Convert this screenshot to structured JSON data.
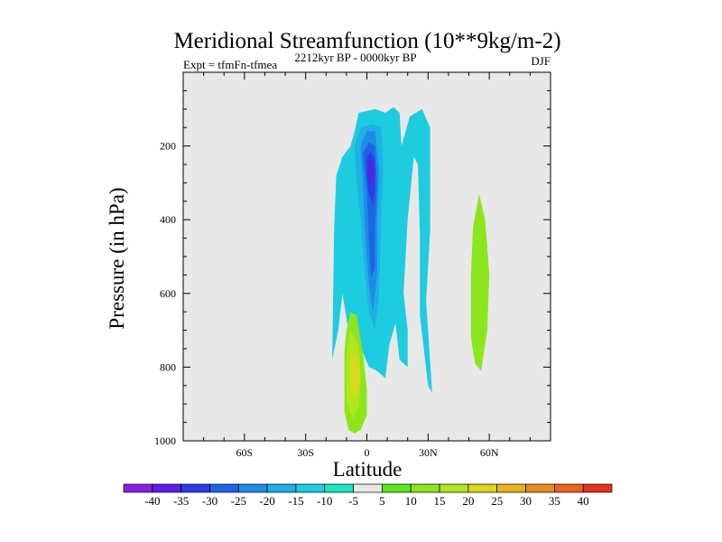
{
  "chart_data": {
    "type": "contour",
    "title": "Meridional Streamfunction (10**9kg/m-2)",
    "subtitle_left": "Expt = tfmFn-tfmea",
    "subtitle_center": "2212kyr BP - 0000kyr BP",
    "subtitle_right": "DJF",
    "xlabel": "Latitude",
    "ylabel": "Pressure (in hPa)",
    "xlim": [
      -90,
      90
    ],
    "ylim": [
      1000,
      0
    ],
    "x_ticks": [
      -60,
      -30,
      0,
      30,
      60
    ],
    "x_tick_labels": [
      "60S",
      "30S",
      "0",
      "30N",
      "60N"
    ],
    "y_ticks": [
      200,
      400,
      600,
      800,
      1000
    ],
    "y_tick_labels": [
      "200",
      "400",
      "600",
      "800",
      "1000"
    ],
    "colorbar": {
      "labels": [
        "-40",
        "-35",
        "-30",
        "-25",
        "-20",
        "-15",
        "-10",
        "-5",
        "5",
        "10",
        "15",
        "20",
        "25",
        "30",
        "35",
        "40"
      ],
      "colors": [
        "#8a1ee6",
        "#5a1ee6",
        "#2a3ce6",
        "#1e64e6",
        "#1e8ce6",
        "#1eb0e6",
        "#1ecce0",
        "#1ee6c0",
        "#e8e8e8",
        "#5ae61e",
        "#8ce61e",
        "#b4e61e",
        "#dcd61e",
        "#e6b41e",
        "#e68c1e",
        "#e6641e",
        "#e6321e"
      ]
    },
    "features": [
      {
        "name": "tropical-negative-cell",
        "level": -10,
        "points": [
          [
            -17,
            780
          ],
          [
            -16,
            420
          ],
          [
            -15,
            280
          ],
          [
            -12,
            230
          ],
          [
            -8,
            200
          ],
          [
            -6,
            160
          ],
          [
            -4,
            110
          ],
          [
            4,
            100
          ],
          [
            9,
            110
          ],
          [
            13,
            95
          ],
          [
            16,
            110
          ],
          [
            17,
            200
          ],
          [
            21,
            120
          ],
          [
            27,
            100
          ],
          [
            31,
            150
          ],
          [
            31,
            430
          ],
          [
            29,
            620
          ],
          [
            32,
            870
          ],
          [
            30,
            850
          ],
          [
            26,
            660
          ],
          [
            26,
            440
          ],
          [
            25,
            250
          ],
          [
            23,
            230
          ],
          [
            20,
            400
          ],
          [
            18,
            600
          ],
          [
            20,
            700
          ],
          [
            20,
            800
          ],
          [
            16,
            780
          ],
          [
            14,
            680
          ],
          [
            11,
            740
          ],
          [
            9,
            830
          ],
          [
            5,
            810
          ],
          [
            1,
            800
          ],
          [
            -2,
            760
          ],
          [
            -5,
            690
          ],
          [
            -7,
            730
          ],
          [
            -9,
            700
          ],
          [
            -12,
            600
          ],
          [
            -14,
            700
          ]
        ]
      },
      {
        "name": "tropical-negative-core-a",
        "level": -15,
        "points": [
          [
            -6,
            200
          ],
          [
            -3,
            150
          ],
          [
            3,
            140
          ],
          [
            7,
            150
          ],
          [
            8,
            250
          ],
          [
            7,
            400
          ],
          [
            6,
            600
          ],
          [
            4,
            700
          ],
          [
            1,
            650
          ],
          [
            -1,
            550
          ],
          [
            -3,
            400
          ],
          [
            -5,
            300
          ]
        ]
      },
      {
        "name": "tropical-negative-core-b",
        "level": -20,
        "points": [
          [
            -3,
            200
          ],
          [
            0,
            160
          ],
          [
            4,
            160
          ],
          [
            6,
            260
          ],
          [
            5,
            400
          ],
          [
            5,
            550
          ],
          [
            3,
            650
          ],
          [
            1,
            580
          ],
          [
            -1,
            420
          ],
          [
            -2,
            300
          ]
        ]
      },
      {
        "name": "tropical-negative-core-c",
        "level": -25,
        "points": [
          [
            -2,
            220
          ],
          [
            1,
            190
          ],
          [
            4,
            200
          ],
          [
            5,
            300
          ],
          [
            4,
            430
          ],
          [
            4,
            530
          ],
          [
            2,
            560
          ],
          [
            1,
            460
          ],
          [
            0,
            320
          ]
        ]
      },
      {
        "name": "tropical-negative-core-d",
        "level": -30,
        "points": [
          [
            0,
            230
          ],
          [
            2,
            215
          ],
          [
            4,
            240
          ],
          [
            4,
            320
          ],
          [
            3,
            360
          ],
          [
            1,
            330
          ],
          [
            0,
            280
          ]
        ]
      },
      {
        "name": "tropical-negative-core-e",
        "level": -35,
        "points": [
          [
            1,
            240
          ],
          [
            3,
            235
          ],
          [
            3,
            290
          ],
          [
            2,
            305
          ],
          [
            1,
            285
          ]
        ]
      },
      {
        "name": "southern-positive-cell",
        "level": 10,
        "points": [
          [
            -8,
            650
          ],
          [
            -5,
            660
          ],
          [
            -2,
            760
          ],
          [
            0,
            860
          ],
          [
            0,
            930
          ],
          [
            -3,
            970
          ],
          [
            -6,
            980
          ],
          [
            -9,
            970
          ],
          [
            -11,
            920
          ],
          [
            -11,
            760
          ],
          [
            -10,
            700
          ]
        ]
      },
      {
        "name": "southern-positive-core",
        "level": 15,
        "points": [
          [
            -8,
            700
          ],
          [
            -4,
            740
          ],
          [
            -3,
            820
          ],
          [
            -4,
            910
          ],
          [
            -7,
            940
          ],
          [
            -10,
            890
          ],
          [
            -10,
            780
          ]
        ]
      },
      {
        "name": "southern-positive-peak",
        "level": 20,
        "points": [
          [
            -7,
            760
          ],
          [
            -4,
            790
          ],
          [
            -4,
            860
          ],
          [
            -6,
            880
          ],
          [
            -8,
            850
          ],
          [
            -8,
            790
          ]
        ]
      },
      {
        "name": "northern-positive-cell",
        "level": 10,
        "points": [
          [
            55,
            330
          ],
          [
            58,
            400
          ],
          [
            60,
            550
          ],
          [
            59,
            700
          ],
          [
            56,
            810
          ],
          [
            53,
            790
          ],
          [
            51,
            720
          ],
          [
            51,
            550
          ],
          [
            52,
            420
          ]
        ]
      }
    ]
  }
}
